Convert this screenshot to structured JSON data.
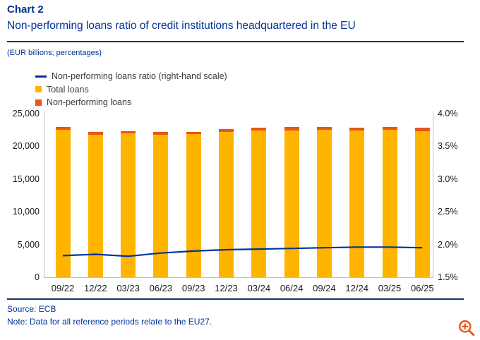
{
  "title": "Chart 2",
  "subtitle": "Non-performing loans ratio of credit institutions headquartered in the EU",
  "units_label": "(EUR billions; percentages)",
  "legend": [
    {
      "label": "Non-performing loans ratio (right-hand scale)",
      "marker": "line",
      "color": "#003299"
    },
    {
      "label": "Total loans",
      "marker": "square",
      "color": "#FFB400"
    },
    {
      "label": "Non-performing loans",
      "marker": "square",
      "color": "#E8541C"
    }
  ],
  "footer": {
    "source": "Source: ECB",
    "note": "Note: Data for all reference periods relate to the EU27."
  },
  "icons": {
    "zoom": "magnifier-plus-icon",
    "zoom_color": "#E8541C"
  },
  "colors": {
    "brand_blue": "#003299",
    "bar_yellow": "#FFB400",
    "bar_red": "#E8541C",
    "line_blue": "#003299",
    "axis_gray": "#BFBFBF",
    "divider_navy": "#17355F"
  },
  "chart_data": {
    "type": "bar+line",
    "title": "Non-performing loans ratio of credit institutions headquartered in the EU",
    "categories": [
      "09/22",
      "12/22",
      "03/23",
      "06/23",
      "09/23",
      "12/23",
      "03/24",
      "06/24",
      "09/24",
      "12/24",
      "03/25",
      "06/25"
    ],
    "series": [
      {
        "name": "Total loans",
        "type": "bar",
        "axis": "left",
        "color": "#FFB400",
        "values": [
          22900,
          22150,
          22350,
          22150,
          22250,
          22600,
          22850,
          22900,
          23000,
          22850,
          22950,
          22800
        ]
      },
      {
        "name": "Non-performing loans",
        "type": "bar-top-segment",
        "axis": "left",
        "color": "#E8541C",
        "values": [
          420,
          410,
          405,
          415,
          425,
          435,
          440,
          445,
          450,
          450,
          450,
          445
        ]
      },
      {
        "name": "Non-performing loans ratio (right-hand scale)",
        "type": "line",
        "axis": "right",
        "color": "#003299",
        "values": [
          1.83,
          1.85,
          1.82,
          1.87,
          1.9,
          1.92,
          1.93,
          1.94,
          1.95,
          1.96,
          1.96,
          1.95
        ]
      }
    ],
    "left_axis": {
      "label": "EUR billions",
      "min": 0,
      "max": 25000,
      "ticks": [
        "25,000",
        "20,000",
        "15,000",
        "10,000",
        "5,000",
        "0"
      ]
    },
    "right_axis": {
      "label": "percentages",
      "min": 1.5,
      "max": 4.0,
      "ticks": [
        "4.0%",
        "3.5%",
        "3.0%",
        "2.5%",
        "2.0%",
        "1.5%"
      ]
    },
    "grid": false,
    "legend_position": "top-left"
  }
}
